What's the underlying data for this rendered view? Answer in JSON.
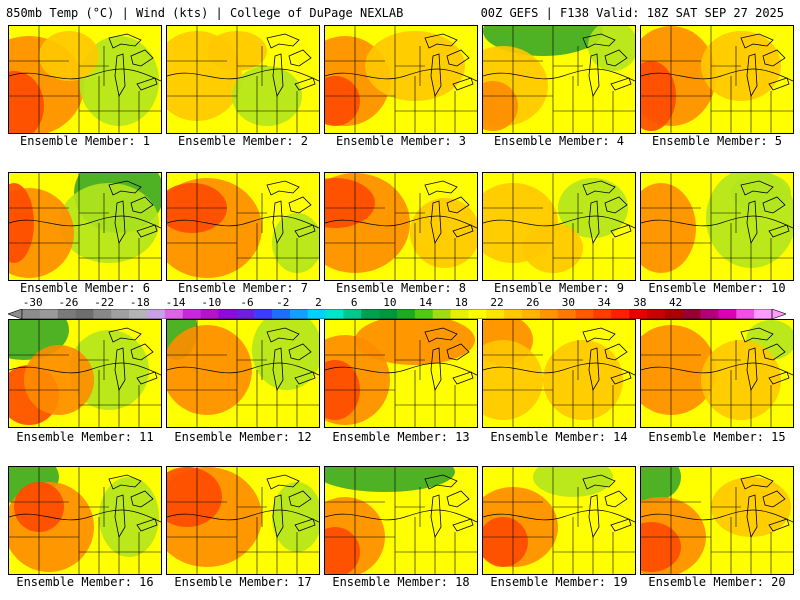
{
  "header": {
    "left": "850mb Temp (°C) | Wind (kts) | College of DuPage NEXLAB",
    "right": "00Z GEFS | F138 Valid: 18Z SAT SEP 27 2025"
  },
  "caption_prefix": "Ensemble Member: ",
  "members": [
    {
      "label": "Ensemble Member: 1"
    },
    {
      "label": "Ensemble Member: 2"
    },
    {
      "label": "Ensemble Member: 3"
    },
    {
      "label": "Ensemble Member: 4"
    },
    {
      "label": "Ensemble Member: 5"
    },
    {
      "label": "Ensemble Member: 6"
    },
    {
      "label": "Ensemble Member: 7"
    },
    {
      "label": "Ensemble Member: 8"
    },
    {
      "label": "Ensemble Member: 9"
    },
    {
      "label": "Ensemble Member: 10"
    },
    {
      "label": "Ensemble Member: 11"
    },
    {
      "label": "Ensemble Member: 12"
    },
    {
      "label": "Ensemble Member: 13"
    },
    {
      "label": "Ensemble Member: 14"
    },
    {
      "label": "Ensemble Member: 15"
    },
    {
      "label": "Ensemble Member: 16"
    },
    {
      "label": "Ensemble Member: 17"
    },
    {
      "label": "Ensemble Member: 18"
    },
    {
      "label": "Ensemble Member: 19"
    },
    {
      "label": "Ensemble Member: 20"
    }
  ],
  "colorbar": {
    "labels": [
      "-30",
      "-26",
      "-22",
      "-18",
      "-14",
      "-10",
      "-6",
      "-2",
      "2",
      "6",
      "10",
      "14",
      "18",
      "22",
      "26",
      "30",
      "34",
      "38",
      "42"
    ],
    "colors": [
      "#8c8c8c",
      "#9a9a9a",
      "#7a7a7a",
      "#6e6e6e",
      "#888888",
      "#a0a0a0",
      "#b4b4b4",
      "#c8a0e6",
      "#dc64e6",
      "#c828dc",
      "#b414c8",
      "#8c0adc",
      "#6e1edc",
      "#3c3cff",
      "#1e6eff",
      "#14a0ff",
      "#00d2ff",
      "#00e6c8",
      "#00c88c",
      "#00a050",
      "#00963c",
      "#1eaa1e",
      "#50c814",
      "#a0dc14",
      "#e6f000",
      "#ffff00",
      "#ffe600",
      "#ffc800",
      "#ffb400",
      "#ff9600",
      "#ff7800",
      "#ff5a00",
      "#ff3c00",
      "#ff1e00",
      "#e60000",
      "#c80000",
      "#aa0000",
      "#960032",
      "#b40078",
      "#dc00b4",
      "#f050e6",
      "#ff9cff"
    ]
  },
  "map_colors": {
    "warm": "#ff8c00",
    "hot": "#ff4a00",
    "mid": "#ffc800",
    "base": "#ffff00",
    "cool": "#b4e61e",
    "cold": "#3caa28",
    "line": "#000000",
    "lake": "#ffff00"
  }
}
